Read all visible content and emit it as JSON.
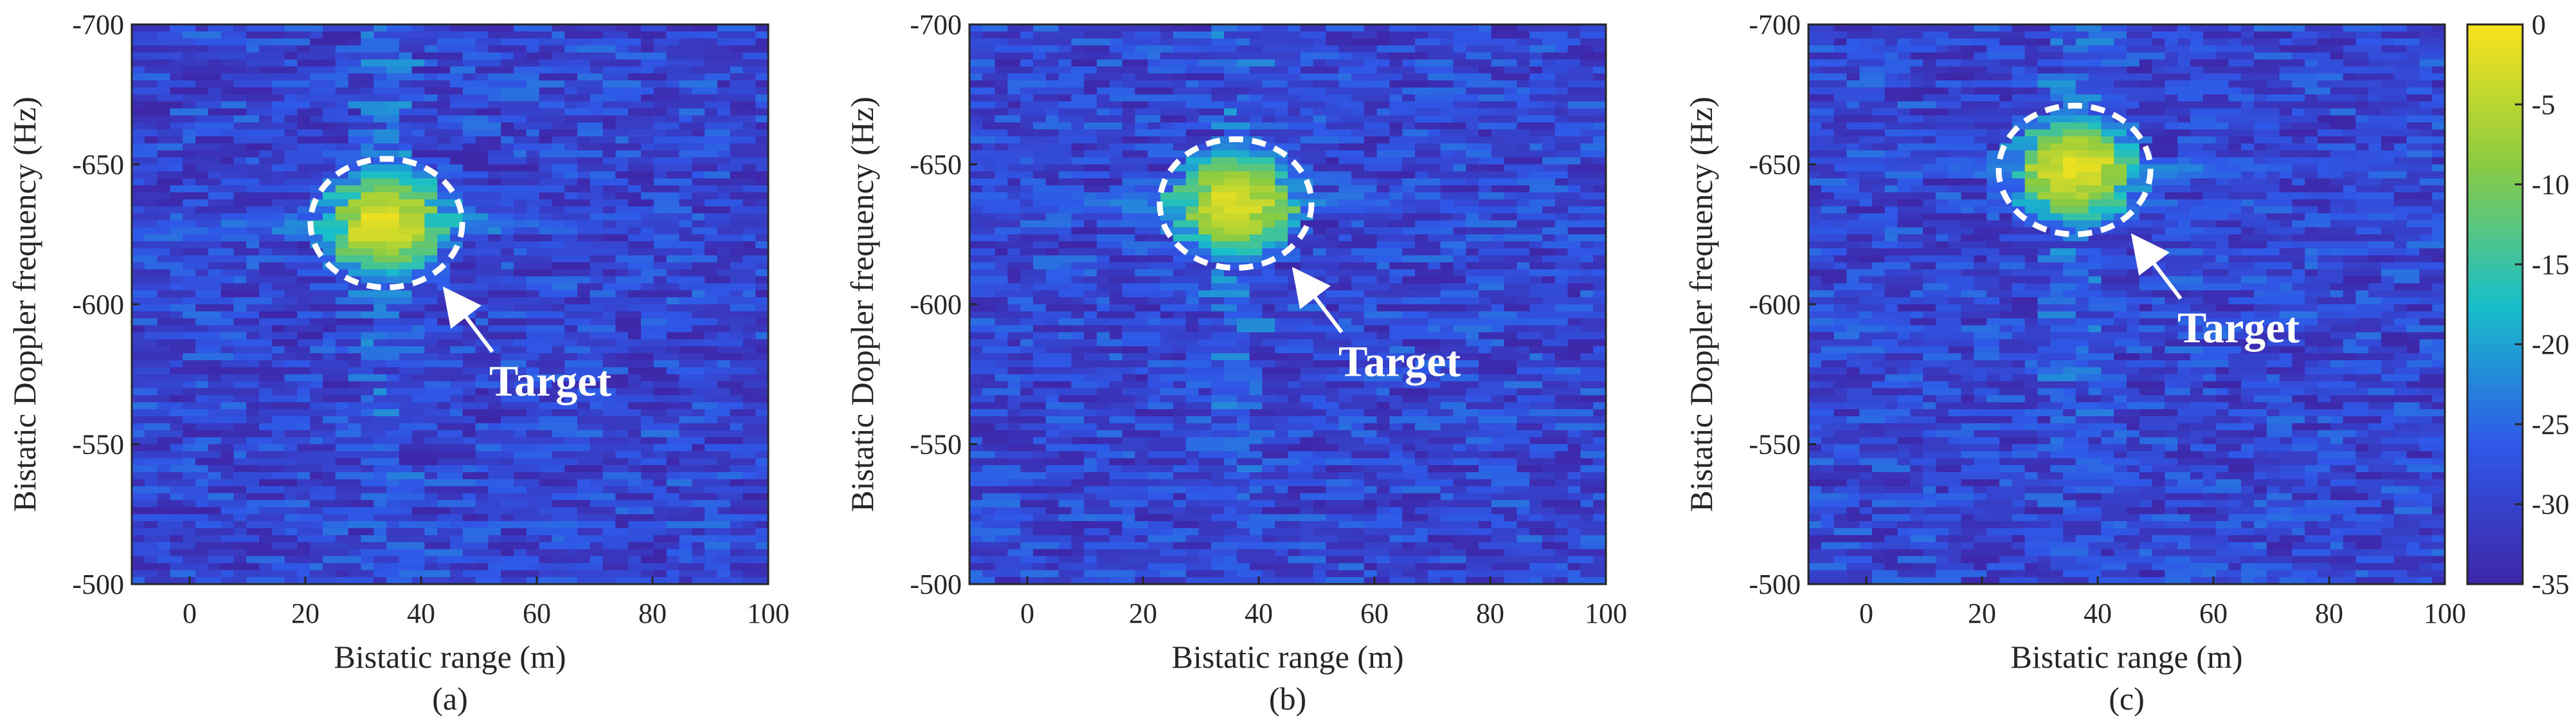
{
  "chart_data": [
    {
      "type": "heatmap",
      "panel": "(a)",
      "xlabel": "Bistatic range (m)",
      "ylabel": "Bistatic Doppler frequency (Hz)",
      "xlim": [
        -10,
        100
      ],
      "ylim": [
        -700,
        -500
      ],
      "xticks": [
        "0",
        "20",
        "40",
        "60",
        "80",
        "100"
      ],
      "xtick_values": [
        0,
        20,
        40,
        60,
        80,
        100
      ],
      "yticks": [
        "-700",
        "-650",
        "-600",
        "-550",
        "-500"
      ],
      "ytick_values": [
        -700,
        -650,
        -600,
        -550,
        -500
      ],
      "target": {
        "label": "Target",
        "range_m": 34,
        "doppler_hz": -629
      },
      "peak_db": 0,
      "stripe_range_m": 34
    },
    {
      "type": "heatmap",
      "panel": "(b)",
      "xlabel": "Bistatic range (m)",
      "ylabel": "Bistatic Doppler frequency (Hz)",
      "xlim": [
        -10,
        100
      ],
      "ylim": [
        -700,
        -500
      ],
      "xticks": [
        "0",
        "20",
        "40",
        "60",
        "80",
        "100"
      ],
      "xtick_values": [
        0,
        20,
        40,
        60,
        80,
        100
      ],
      "yticks": [
        "-700",
        "-650",
        "-600",
        "-550",
        "-500"
      ],
      "ytick_values": [
        -700,
        -650,
        -600,
        -550,
        -500
      ],
      "target": {
        "label": "Target",
        "range_m": 36,
        "doppler_hz": -636
      },
      "peak_db": 0,
      "stripe_range_m": 36
    },
    {
      "type": "heatmap",
      "panel": "(c)",
      "xlabel": "Bistatic range (m)",
      "ylabel": "Bistatic Doppler frequency (Hz)",
      "xlim": [
        -10,
        100
      ],
      "ylim": [
        -700,
        -500
      ],
      "xticks": [
        "0",
        "20",
        "40",
        "60",
        "80",
        "100"
      ],
      "xtick_values": [
        0,
        20,
        40,
        60,
        80,
        100
      ],
      "yticks": [
        "-700",
        "-650",
        "-600",
        "-550",
        "-500"
      ],
      "ytick_values": [
        -700,
        -650,
        -600,
        -550,
        -500
      ],
      "target": {
        "label": "Target",
        "range_m": 36,
        "doppler_hz": -648
      },
      "peak_db": 0,
      "stripe_range_m": 36
    }
  ],
  "colorbar": {
    "range_db": [
      -35,
      0
    ],
    "ticks": [
      "0",
      "-5",
      "-10",
      "-15",
      "-20",
      "-25",
      "-30",
      "-35"
    ],
    "tick_values": [
      0,
      -5,
      -10,
      -15,
      -20,
      -25,
      -30,
      -35
    ],
    "colors": {
      "low": "#3e26a8",
      "mid_low": "#2f58e8",
      "mid": "#18bfc9",
      "mid_high": "#8bcb41",
      "high": "#f9e31c"
    }
  },
  "annotation_color": "#ffffff"
}
